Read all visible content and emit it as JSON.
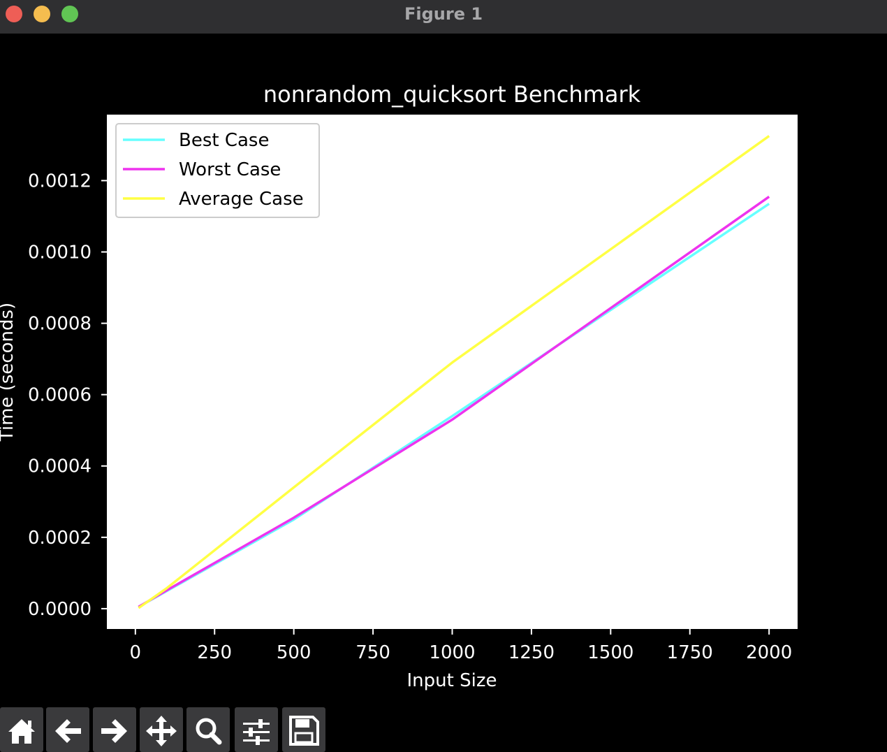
{
  "window": {
    "title": "Figure 1"
  },
  "toolbar": {
    "buttons": [
      {
        "name": "home",
        "icon": "home-icon"
      },
      {
        "name": "back",
        "icon": "arrow-left-icon"
      },
      {
        "name": "forward",
        "icon": "arrow-right-icon"
      },
      {
        "name": "pan",
        "icon": "move-icon"
      },
      {
        "name": "zoom",
        "icon": "search-icon"
      },
      {
        "name": "configure",
        "icon": "sliders-icon"
      },
      {
        "name": "save",
        "icon": "save-icon"
      }
    ]
  },
  "chart_data": {
    "type": "line",
    "title": "nonrandom_quicksort Benchmark",
    "xlabel": "Input Size",
    "ylabel": "Time (seconds)",
    "xlim": [
      -90,
      2090
    ],
    "ylim": [
      -5.7e-05,
      0.001385
    ],
    "xticks": [
      0,
      250,
      500,
      750,
      1000,
      1250,
      1500,
      1750,
      2000
    ],
    "xtick_labels": [
      "0",
      "250",
      "500",
      "750",
      "1000",
      "1250",
      "1500",
      "1750",
      "2000"
    ],
    "yticks": [
      0,
      0.0002,
      0.0004,
      0.0006,
      0.0008,
      0.001,
      0.0012
    ],
    "ytick_labels": [
      "0.0000",
      "0.0002",
      "0.0004",
      "0.0006",
      "0.0008",
      "0.0010",
      "0.0012"
    ],
    "grid": false,
    "legend": "upper-left",
    "x": [
      10,
      100,
      500,
      1000,
      2000
    ],
    "series": [
      {
        "name": "Best Case",
        "color": "#66ffff",
        "values": [
          5e-06,
          5e-05,
          0.00025,
          0.00054,
          0.001135
        ]
      },
      {
        "name": "Worst Case",
        "color": "#ee33ee",
        "values": [
          5e-06,
          5.2e-05,
          0.000255,
          0.00053,
          0.001155
        ]
      },
      {
        "name": "Average Case",
        "color": "#ffff44",
        "values": [
          2e-06,
          5.8e-05,
          0.00034,
          0.00069,
          0.001325
        ]
      }
    ]
  }
}
